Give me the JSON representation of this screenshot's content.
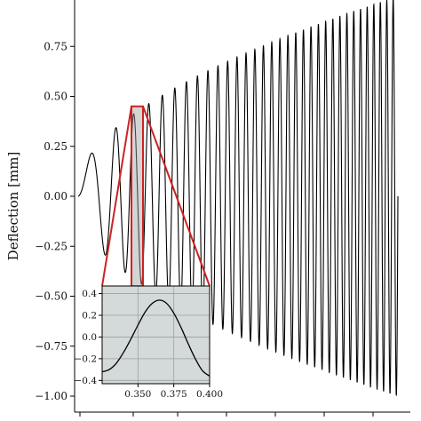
{
  "chart_data": [
    {
      "type": "line",
      "title": "",
      "xlabel": "",
      "ylabel": "Deflection [mm]",
      "ylim": [
        -1.08,
        1.0
      ],
      "y_ticks": [
        {
          "value": 0.75,
          "label": "0.75"
        },
        {
          "value": 0.5,
          "label": "0.50"
        },
        {
          "value": 0.25,
          "label": "0.25"
        },
        {
          "value": 0.0,
          "label": "0.00"
        },
        {
          "value": -0.25,
          "label": "−0.25"
        },
        {
          "value": -0.5,
          "label": "−0.50"
        },
        {
          "value": -0.75,
          "label": "−0.75"
        },
        {
          "value": -1.0,
          "label": "−1.00"
        }
      ],
      "grid": false,
      "line_color": "#000000",
      "signal": {
        "description_of_shape": "chirp-like oscillation with amplitude rising from ~0.05 to ~1.0",
        "amplitude_start": 0.05,
        "amplitude_end": 1.0,
        "cycles": 33
      },
      "zoom_box": {
        "y_range": [
          -0.45,
          0.45
        ],
        "color": "#cc2222"
      }
    },
    {
      "type": "line",
      "title": "",
      "xlim": [
        0.325,
        0.4
      ],
      "ylim": [
        -0.43,
        0.47
      ],
      "x_ticks": [
        {
          "value": 0.35,
          "label": "0.350"
        },
        {
          "value": 0.375,
          "label": "0.375"
        },
        {
          "value": 0.4,
          "label": "0.400"
        }
      ],
      "y_ticks": [
        {
          "value": 0.4,
          "label": "0.4"
        },
        {
          "value": 0.2,
          "label": "0.2"
        },
        {
          "value": 0.0,
          "label": "0.0"
        },
        {
          "value": -0.2,
          "label": "−0.2"
        },
        {
          "value": -0.4,
          "label": "−0.4"
        }
      ],
      "grid": true,
      "background": "#d4d9d9",
      "line_color": "#000000",
      "series": [
        {
          "x": [
            0.325,
            0.33,
            0.335,
            0.34,
            0.345,
            0.35,
            0.355,
            0.36,
            0.365,
            0.37,
            0.375,
            0.38,
            0.385,
            0.39,
            0.395,
            0.4
          ],
          "values": [
            -0.32,
            -0.3,
            -0.24,
            -0.14,
            -0.02,
            0.11,
            0.23,
            0.31,
            0.34,
            0.31,
            0.22,
            0.09,
            -0.06,
            -0.2,
            -0.31,
            -0.36
          ]
        }
      ]
    }
  ]
}
